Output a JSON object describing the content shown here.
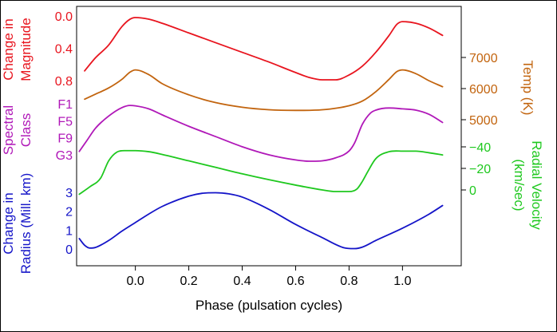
{
  "chart_data": {
    "type": "line",
    "xlabel": "Phase (pulsation cycles)",
    "xlim": [
      -0.22,
      1.22
    ],
    "x_ticks": [
      0.0,
      0.2,
      0.4,
      0.6,
      0.8,
      1.0
    ],
    "x_tick_labels": [
      "0.0",
      "0.2",
      "0.4",
      "0.6",
      "0.8",
      "1.0"
    ],
    "series": [
      {
        "name": "magnitude",
        "color": "#e8141e",
        "axis_side": "left",
        "axis_label": [
          "Change in",
          "Magnitude"
        ],
        "ticks": [
          0.0,
          0.4,
          0.8
        ],
        "tick_labels": [
          "0.0",
          "0.4",
          "0.8"
        ],
        "x": [
          -0.19,
          -0.15,
          -0.1,
          -0.05,
          -0.02,
          0.0,
          0.05,
          0.1,
          0.2,
          0.3,
          0.4,
          0.5,
          0.6,
          0.65,
          0.7,
          0.75,
          0.8,
          0.85,
          0.9,
          0.95,
          0.98,
          1.0,
          1.05,
          1.1,
          1.15
        ],
        "y": [
          0.68,
          0.52,
          0.36,
          0.13,
          0.04,
          0.02,
          0.04,
          0.09,
          0.21,
          0.33,
          0.45,
          0.57,
          0.7,
          0.76,
          0.79,
          0.79,
          0.73,
          0.62,
          0.45,
          0.24,
          0.1,
          0.07,
          0.09,
          0.15,
          0.24
        ]
      },
      {
        "name": "temperature",
        "color": "#c2640e",
        "axis_side": "right",
        "axis_label": [
          "Temp (K)"
        ],
        "ticks": [
          7000,
          6000,
          5000
        ],
        "tick_labels": [
          "7000",
          "6000",
          "5000"
        ],
        "x": [
          -0.19,
          -0.15,
          -0.1,
          -0.05,
          -0.02,
          0.0,
          0.05,
          0.1,
          0.2,
          0.3,
          0.4,
          0.5,
          0.6,
          0.7,
          0.8,
          0.85,
          0.9,
          0.95,
          0.98,
          1.0,
          1.05,
          1.1,
          1.15
        ],
        "y": [
          5660,
          5820,
          6020,
          6300,
          6530,
          6600,
          6450,
          6160,
          5800,
          5550,
          5400,
          5320,
          5300,
          5320,
          5450,
          5600,
          5900,
          6300,
          6550,
          6600,
          6480,
          6250,
          6060
        ]
      },
      {
        "name": "spectral-class",
        "color": "#b018b8",
        "axis_side": "left",
        "axis_label": [
          "Spectral",
          "Class"
        ],
        "ticks": [
          0,
          4,
          8,
          12
        ],
        "tick_labels": [
          "F1",
          "F5",
          "F9",
          "G3"
        ],
        "x": [
          -0.21,
          -0.18,
          -0.15,
          -0.1,
          -0.05,
          -0.02,
          0.0,
          0.05,
          0.1,
          0.2,
          0.3,
          0.4,
          0.5,
          0.6,
          0.65,
          0.7,
          0.75,
          0.8,
          0.82,
          0.85,
          0.88,
          0.9,
          0.95,
          1.0,
          1.05,
          1.1,
          1.15
        ],
        "y": [
          11.2,
          8.5,
          5.8,
          2.9,
          0.9,
          0.4,
          0.5,
          1.2,
          2.6,
          5.3,
          7.7,
          10.1,
          12.0,
          13.2,
          13.5,
          13.4,
          12.7,
          11.1,
          9.3,
          4.8,
          2.2,
          1.5,
          1.0,
          1.2,
          1.5,
          2.5,
          4.4
        ]
      },
      {
        "name": "radial-velocity",
        "color": "#1ec81e",
        "axis_side": "right",
        "axis_label": [
          "Radial Velocity",
          "(km/sec)"
        ],
        "ticks": [
          -40,
          -20,
          0
        ],
        "tick_labels": [
          "−40",
          "−20",
          "0"
        ],
        "x": [
          -0.21,
          -0.17,
          -0.13,
          -0.1,
          -0.07,
          -0.04,
          0.0,
          0.05,
          0.1,
          0.2,
          0.3,
          0.4,
          0.5,
          0.6,
          0.7,
          0.75,
          0.8,
          0.83,
          0.85,
          0.87,
          0.9,
          0.95,
          1.0,
          1.05,
          1.1,
          1.15
        ],
        "y": [
          4.0,
          -3.0,
          -11.0,
          -27.0,
          -35.0,
          -36.5,
          -36.5,
          -35.5,
          -33.0,
          -27.0,
          -21.0,
          -15.0,
          -9.5,
          -4.5,
          0.0,
          1.5,
          1.5,
          -1.0,
          -8.0,
          -17.0,
          -29.0,
          -35.5,
          -36.0,
          -36.0,
          -34.5,
          -32.5
        ]
      },
      {
        "name": "radius",
        "color": "#1414c8",
        "axis_side": "left",
        "axis_label": [
          "Change in",
          "Radius (Mill. km)"
        ],
        "ticks": [
          0,
          1,
          2,
          3
        ],
        "tick_labels": [
          "0",
          "1",
          "2",
          "3"
        ],
        "x": [
          -0.21,
          -0.19,
          -0.17,
          -0.15,
          -0.1,
          -0.05,
          0.0,
          0.05,
          0.1,
          0.2,
          0.25,
          0.3,
          0.35,
          0.4,
          0.5,
          0.6,
          0.7,
          0.78,
          0.82,
          0.85,
          0.9,
          1.0,
          1.1,
          1.15
        ],
        "y": [
          0.55,
          0.2,
          0.05,
          0.08,
          0.45,
          0.95,
          1.4,
          1.85,
          2.25,
          2.8,
          2.95,
          2.98,
          2.92,
          2.75,
          2.1,
          1.3,
          0.6,
          0.07,
          0.02,
          0.1,
          0.45,
          1.1,
          1.85,
          2.3
        ]
      }
    ]
  }
}
